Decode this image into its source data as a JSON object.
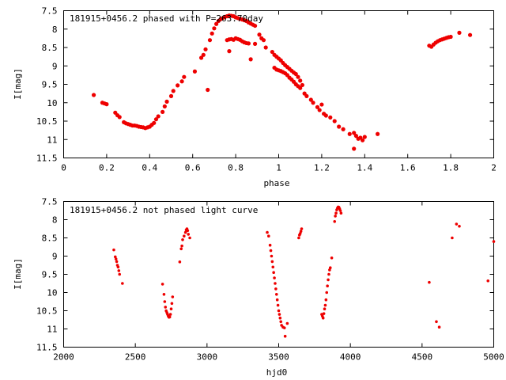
{
  "chart_data": [
    {
      "type": "scatter",
      "title": "181915+0456.2 phased with P=263.70day",
      "xlabel": "phase",
      "ylabel": "I[mag]",
      "xlim": [
        0,
        2
      ],
      "ylim": [
        7.5,
        11.5
      ],
      "y_inverted": true,
      "grid": false,
      "marker_color": "#ee0000",
      "x_ticks": [
        "0",
        "0.2",
        "0.4",
        "0.6",
        "0.8",
        "1",
        "1.2",
        "1.4",
        "1.6",
        "1.8",
        "2"
      ],
      "y_ticks": [
        "7.5",
        "8",
        "8.5",
        "9",
        "9.5",
        "10",
        "10.5",
        "11",
        "11.5"
      ],
      "series": [
        {
          "points": [
            [
              0.14,
              9.79
            ],
            [
              0.18,
              10.0
            ],
            [
              0.19,
              10.02
            ],
            [
              0.2,
              10.04
            ],
            [
              0.24,
              10.27
            ],
            [
              0.25,
              10.34
            ],
            [
              0.26,
              10.39
            ],
            [
              0.28,
              10.53
            ],
            [
              0.29,
              10.56
            ],
            [
              0.3,
              10.58
            ],
            [
              0.31,
              10.6
            ],
            [
              0.32,
              10.62
            ],
            [
              0.33,
              10.62
            ],
            [
              0.34,
              10.63
            ],
            [
              0.35,
              10.65
            ],
            [
              0.36,
              10.66
            ],
            [
              0.37,
              10.67
            ],
            [
              0.38,
              10.69
            ],
            [
              0.39,
              10.67
            ],
            [
              0.4,
              10.65
            ],
            [
              0.41,
              10.6
            ],
            [
              0.42,
              10.55
            ],
            [
              0.43,
              10.45
            ],
            [
              0.44,
              10.37
            ],
            [
              0.46,
              10.25
            ],
            [
              0.47,
              10.1
            ],
            [
              0.48,
              9.97
            ],
            [
              0.5,
              9.82
            ],
            [
              0.51,
              9.68
            ],
            [
              0.53,
              9.53
            ],
            [
              0.55,
              9.42
            ],
            [
              0.56,
              9.3
            ],
            [
              0.61,
              9.15
            ],
            [
              0.64,
              8.78
            ],
            [
              0.65,
              8.7
            ],
            [
              0.66,
              8.55
            ],
            [
              0.67,
              9.65
            ],
            [
              0.68,
              8.3
            ],
            [
              0.69,
              8.12
            ],
            [
              0.7,
              7.98
            ],
            [
              0.71,
              7.86
            ],
            [
              0.72,
              7.78
            ],
            [
              0.73,
              7.73
            ],
            [
              0.74,
              7.7
            ],
            [
              0.75,
              7.67
            ],
            [
              0.76,
              7.65
            ],
            [
              0.77,
              7.63
            ],
            [
              0.78,
              7.64
            ],
            [
              0.79,
              7.65
            ],
            [
              0.8,
              7.68
            ],
            [
              0.81,
              7.7
            ],
            [
              0.82,
              7.72
            ],
            [
              0.83,
              7.74
            ],
            [
              0.84,
              7.76
            ],
            [
              0.85,
              7.78
            ],
            [
              0.86,
              7.82
            ],
            [
              0.87,
              7.85
            ],
            [
              0.88,
              7.88
            ],
            [
              0.89,
              7.91
            ],
            [
              0.76,
              8.3
            ],
            [
              0.77,
              8.28
            ],
            [
              0.78,
              8.27
            ],
            [
              0.79,
              8.29
            ],
            [
              0.8,
              8.25
            ],
            [
              0.81,
              8.27
            ],
            [
              0.82,
              8.29
            ],
            [
              0.83,
              8.33
            ],
            [
              0.84,
              8.36
            ],
            [
              0.85,
              8.38
            ],
            [
              0.86,
              8.39
            ],
            [
              0.77,
              8.6
            ],
            [
              0.87,
              8.82
            ],
            [
              0.89,
              8.4
            ],
            [
              0.91,
              8.15
            ],
            [
              0.92,
              8.25
            ],
            [
              0.93,
              8.3
            ],
            [
              0.94,
              8.5
            ],
            [
              0.97,
              8.62
            ],
            [
              0.98,
              8.7
            ],
            [
              0.99,
              8.75
            ],
            [
              1.0,
              8.8
            ],
            [
              1.01,
              8.85
            ],
            [
              1.02,
              8.92
            ],
            [
              1.03,
              8.98
            ],
            [
              1.04,
              9.03
            ],
            [
              1.05,
              9.08
            ],
            [
              1.06,
              9.13
            ],
            [
              1.07,
              9.18
            ],
            [
              1.08,
              9.22
            ],
            [
              1.09,
              9.3
            ],
            [
              1.1,
              9.4
            ],
            [
              0.98,
              9.05
            ],
            [
              0.99,
              9.1
            ],
            [
              1.0,
              9.12
            ],
            [
              1.01,
              9.14
            ],
            [
              1.02,
              9.17
            ],
            [
              1.03,
              9.2
            ],
            [
              1.04,
              9.25
            ],
            [
              1.05,
              9.32
            ],
            [
              1.06,
              9.37
            ],
            [
              1.07,
              9.43
            ],
            [
              1.08,
              9.5
            ],
            [
              1.09,
              9.55
            ],
            [
              1.1,
              9.6
            ],
            [
              1.11,
              9.52
            ],
            [
              1.12,
              9.75
            ],
            [
              1.13,
              9.82
            ],
            [
              1.15,
              9.92
            ],
            [
              1.16,
              10.0
            ],
            [
              1.18,
              10.12
            ],
            [
              1.19,
              10.2
            ],
            [
              1.2,
              10.05
            ],
            [
              1.21,
              10.3
            ],
            [
              1.22,
              10.35
            ],
            [
              1.24,
              10.4
            ],
            [
              1.26,
              10.5
            ],
            [
              1.28,
              10.65
            ],
            [
              1.3,
              10.72
            ],
            [
              1.33,
              10.85
            ],
            [
              1.35,
              10.82
            ],
            [
              1.36,
              10.9
            ],
            [
              1.37,
              10.98
            ],
            [
              1.38,
              10.95
            ],
            [
              1.39,
              11.02
            ],
            [
              1.4,
              10.93
            ],
            [
              1.35,
              11.25
            ],
            [
              1.46,
              10.85
            ],
            [
              1.7,
              8.45
            ],
            [
              1.71,
              8.48
            ],
            [
              1.72,
              8.42
            ],
            [
              1.73,
              8.37
            ],
            [
              1.74,
              8.33
            ],
            [
              1.75,
              8.3
            ],
            [
              1.76,
              8.28
            ],
            [
              1.77,
              8.26
            ],
            [
              1.78,
              8.24
            ],
            [
              1.79,
              8.22
            ],
            [
              1.8,
              8.21
            ],
            [
              1.84,
              8.1
            ],
            [
              1.89,
              8.16
            ]
          ]
        }
      ]
    },
    {
      "type": "scatter",
      "title": "181915+0456.2 not phased light curve",
      "xlabel": "hjd0",
      "ylabel": "I[mag]",
      "xlim": [
        2000,
        5000
      ],
      "ylim": [
        7.5,
        11.5
      ],
      "y_inverted": true,
      "grid": false,
      "marker_color": "#ee0000",
      "x_ticks": [
        "2000",
        "2500",
        "3000",
        "3500",
        "4000",
        "4500",
        "5000"
      ],
      "y_ticks": [
        "7.5",
        "8",
        "8.5",
        "9",
        "9.5",
        "10",
        "10.5",
        "11",
        "11.5"
      ],
      "series": [
        {
          "points": [
            [
              2350,
              8.83
            ],
            [
              2360,
              9.02
            ],
            [
              2365,
              9.08
            ],
            [
              2370,
              9.15
            ],
            [
              2375,
              9.25
            ],
            [
              2380,
              9.3
            ],
            [
              2385,
              9.4
            ],
            [
              2390,
              9.5
            ],
            [
              2410,
              9.75
            ],
            [
              2690,
              9.77
            ],
            [
              2700,
              10.05
            ],
            [
              2705,
              10.25
            ],
            [
              2710,
              10.4
            ],
            [
              2715,
              10.5
            ],
            [
              2720,
              10.55
            ],
            [
              2725,
              10.6
            ],
            [
              2730,
              10.65
            ],
            [
              2735,
              10.68
            ],
            [
              2740,
              10.67
            ],
            [
              2745,
              10.6
            ],
            [
              2750,
              10.45
            ],
            [
              2755,
              10.3
            ],
            [
              2760,
              10.12
            ],
            [
              2810,
              9.16
            ],
            [
              2820,
              8.8
            ],
            [
              2825,
              8.72
            ],
            [
              2830,
              8.55
            ],
            [
              2840,
              8.45
            ],
            [
              2850,
              8.35
            ],
            [
              2855,
              8.28
            ],
            [
              2860,
              8.25
            ],
            [
              2865,
              8.3
            ],
            [
              2870,
              8.4
            ],
            [
              2880,
              8.5
            ],
            [
              3420,
              8.35
            ],
            [
              3430,
              8.45
            ],
            [
              3440,
              8.7
            ],
            [
              3445,
              8.85
            ],
            [
              3450,
              9.0
            ],
            [
              3455,
              9.15
            ],
            [
              3460,
              9.3
            ],
            [
              3465,
              9.45
            ],
            [
              3470,
              9.6
            ],
            [
              3475,
              9.75
            ],
            [
              3480,
              9.9
            ],
            [
              3485,
              10.05
            ],
            [
              3490,
              10.2
            ],
            [
              3495,
              10.35
            ],
            [
              3500,
              10.5
            ],
            [
              3505,
              10.6
            ],
            [
              3510,
              10.7
            ],
            [
              3515,
              10.8
            ],
            [
              3520,
              10.9
            ],
            [
              3530,
              10.95
            ],
            [
              3540,
              10.97
            ],
            [
              3545,
              11.2
            ],
            [
              3560,
              10.85
            ],
            [
              3640,
              8.5
            ],
            [
              3645,
              8.42
            ],
            [
              3650,
              8.38
            ],
            [
              3655,
              8.32
            ],
            [
              3660,
              8.25
            ],
            [
              3800,
              10.6
            ],
            [
              3805,
              10.65
            ],
            [
              3810,
              10.7
            ],
            [
              3815,
              10.58
            ],
            [
              3820,
              10.45
            ],
            [
              3825,
              10.35
            ],
            [
              3830,
              10.2
            ],
            [
              3835,
              10.0
            ],
            [
              3840,
              9.82
            ],
            [
              3845,
              9.65
            ],
            [
              3850,
              9.5
            ],
            [
              3855,
              9.38
            ],
            [
              3860,
              9.32
            ],
            [
              3870,
              9.05
            ],
            [
              3890,
              8.05
            ],
            [
              3895,
              7.9
            ],
            [
              3900,
              7.82
            ],
            [
              3905,
              7.73
            ],
            [
              3910,
              7.68
            ],
            [
              3915,
              7.65
            ],
            [
              3920,
              7.66
            ],
            [
              3925,
              7.7
            ],
            [
              3930,
              7.75
            ],
            [
              3935,
              7.82
            ],
            [
              4550,
              9.72
            ],
            [
              4600,
              10.8
            ],
            [
              4620,
              10.95
            ],
            [
              4710,
              8.5
            ],
            [
              4740,
              8.12
            ],
            [
              4760,
              8.18
            ],
            [
              4960,
              9.68
            ],
            [
              5000,
              8.6
            ]
          ]
        }
      ]
    }
  ]
}
